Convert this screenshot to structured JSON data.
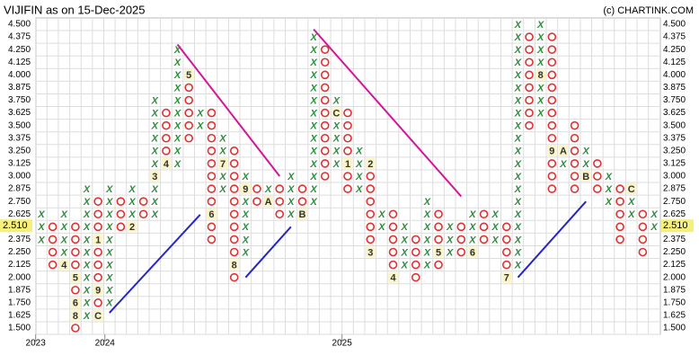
{
  "chart_data": {
    "type": "point-and-figure",
    "title": "VIJIFIN as on 15-Dec-2025",
    "credit": "(c) CHARTINK.COM",
    "x_color": "#2e8b3e",
    "o_color": "#e03030",
    "box_size": 0.125,
    "ylim": [
      1.5,
      4.5
    ],
    "yticks": [
      {
        "value": 1.5,
        "label": "1.500"
      },
      {
        "value": 1.625,
        "label": "1.625"
      },
      {
        "value": 1.75,
        "label": "1.750"
      },
      {
        "value": 1.875,
        "label": "1.875"
      },
      {
        "value": 2.0,
        "label": "2.000"
      },
      {
        "value": 2.125,
        "label": "2.125"
      },
      {
        "value": 2.25,
        "label": "2.250"
      },
      {
        "value": 2.375,
        "label": "2.375"
      },
      {
        "value": 2.5,
        "label": "2.500"
      },
      {
        "value": 2.625,
        "label": "2.625"
      },
      {
        "value": 2.75,
        "label": "2.750"
      },
      {
        "value": 2.875,
        "label": "2.875"
      },
      {
        "value": 3.0,
        "label": "3.000"
      },
      {
        "value": 3.125,
        "label": "3.125"
      },
      {
        "value": 3.25,
        "label": "3.250"
      },
      {
        "value": 3.375,
        "label": "3.375"
      },
      {
        "value": 3.5,
        "label": "3.500"
      },
      {
        "value": 3.625,
        "label": "3.625"
      },
      {
        "value": 3.75,
        "label": "3.750"
      },
      {
        "value": 3.875,
        "label": "3.875"
      },
      {
        "value": 4.0,
        "label": "4.000"
      },
      {
        "value": 4.125,
        "label": "4.125"
      },
      {
        "value": 4.25,
        "label": "4.250"
      },
      {
        "value": 4.375,
        "label": "4.375"
      },
      {
        "value": 4.5,
        "label": "4.500"
      }
    ],
    "last_price": {
      "value": 2.51,
      "label": "2.510"
    },
    "x_labels": [
      {
        "value": -0.5,
        "label": "2023"
      },
      {
        "value": 5.6,
        "label": "2024"
      },
      {
        "value": 26.5,
        "label": "2025"
      }
    ],
    "columns": [
      {
        "type": "X",
        "low": 2.375,
        "high": 2.625,
        "marks": []
      },
      {
        "type": "O",
        "low": 2.125,
        "high": 2.5,
        "marks": []
      },
      {
        "type": "X",
        "low": 2.125,
        "high": 2.625,
        "marks": [
          {
            "value": 2.125,
            "label": "4"
          }
        ]
      },
      {
        "type": "O",
        "low": 1.5,
        "high": 2.5,
        "marks": [
          {
            "value": 2.0,
            "label": "5"
          },
          {
            "value": 1.75,
            "label": "6"
          },
          {
            "value": 1.625,
            "label": "8"
          }
        ]
      },
      {
        "type": "X",
        "low": 1.625,
        "high": 2.875,
        "marks": []
      },
      {
        "type": "O",
        "low": 1.625,
        "high": 2.75,
        "marks": [
          {
            "value": 2.375,
            "label": "1"
          },
          {
            "value": 1.875,
            "label": "9"
          },
          {
            "value": 1.625,
            "label": "C"
          }
        ]
      },
      {
        "type": "X",
        "low": 1.75,
        "high": 2.875,
        "marks": []
      },
      {
        "type": "O",
        "low": 2.5,
        "high": 2.75,
        "marks": []
      },
      {
        "type": "X",
        "low": 2.5,
        "high": 2.875,
        "marks": [
          {
            "value": 2.5,
            "label": "2"
          }
        ]
      },
      {
        "type": "O",
        "low": 2.625,
        "high": 2.75,
        "marks": []
      },
      {
        "type": "X",
        "low": 2.625,
        "high": 3.75,
        "marks": [
          {
            "value": 3.0,
            "label": "3"
          }
        ]
      },
      {
        "type": "O",
        "low": 3.125,
        "high": 3.625,
        "marks": [
          {
            "value": 3.125,
            "label": "4"
          }
        ]
      },
      {
        "type": "X",
        "low": 3.125,
        "high": 4.25,
        "marks": []
      },
      {
        "type": "O",
        "low": 3.375,
        "high": 4.0,
        "marks": [
          {
            "value": 4.0,
            "label": "5"
          }
        ]
      },
      {
        "type": "X",
        "low": 3.5,
        "high": 3.625,
        "marks": []
      },
      {
        "type": "O",
        "low": 2.375,
        "high": 3.625,
        "marks": [
          {
            "value": 2.625,
            "label": "6"
          }
        ]
      },
      {
        "type": "X",
        "low": 2.875,
        "high": 3.375,
        "marks": [
          {
            "value": 3.125,
            "label": "7"
          }
        ]
      },
      {
        "type": "O",
        "low": 2.0,
        "high": 3.25,
        "marks": [
          {
            "value": 2.125,
            "label": "8"
          }
        ]
      },
      {
        "type": "X",
        "low": 2.25,
        "high": 3.0,
        "marks": [
          {
            "value": 2.875,
            "label": "9"
          }
        ]
      },
      {
        "type": "O",
        "low": 2.75,
        "high": 2.875,
        "marks": []
      },
      {
        "type": "X",
        "low": 2.75,
        "high": 2.875,
        "marks": [
          {
            "value": 2.75,
            "label": "A"
          }
        ]
      },
      {
        "type": "O",
        "low": 2.625,
        "high": 2.875,
        "marks": []
      },
      {
        "type": "X",
        "low": 2.625,
        "high": 3.0,
        "marks": []
      },
      {
        "type": "O",
        "low": 2.625,
        "high": 2.875,
        "marks": [
          {
            "value": 2.625,
            "label": "B"
          }
        ]
      },
      {
        "type": "X",
        "low": 2.75,
        "high": 4.375,
        "marks": []
      },
      {
        "type": "O",
        "low": 3.0,
        "high": 4.25,
        "marks": []
      },
      {
        "type": "X",
        "low": 3.125,
        "high": 3.75,
        "marks": [
          {
            "value": 3.625,
            "label": "C"
          }
        ]
      },
      {
        "type": "O",
        "low": 2.875,
        "high": 3.625,
        "marks": [
          {
            "value": 3.125,
            "label": "1"
          }
        ]
      },
      {
        "type": "X",
        "low": 2.875,
        "high": 3.25,
        "marks": []
      },
      {
        "type": "O",
        "low": 2.25,
        "high": 3.125,
        "marks": [
          {
            "value": 3.125,
            "label": "2"
          },
          {
            "value": 2.25,
            "label": "3"
          }
        ]
      },
      {
        "type": "X",
        "low": 2.5,
        "high": 2.625,
        "marks": []
      },
      {
        "type": "O",
        "low": 2.0,
        "high": 2.625,
        "marks": [
          {
            "value": 2.0,
            "label": "4"
          }
        ]
      },
      {
        "type": "X",
        "low": 2.125,
        "high": 2.5,
        "marks": []
      },
      {
        "type": "O",
        "low": 2.0,
        "high": 2.375,
        "marks": []
      },
      {
        "type": "X",
        "low": 2.125,
        "high": 2.75,
        "marks": []
      },
      {
        "type": "O",
        "low": 2.125,
        "high": 2.625,
        "marks": [
          {
            "value": 2.25,
            "label": "5"
          }
        ]
      },
      {
        "type": "X",
        "low": 2.25,
        "high": 2.5,
        "marks": []
      },
      {
        "type": "O",
        "low": 2.25,
        "high": 2.5,
        "marks": []
      },
      {
        "type": "X",
        "low": 2.25,
        "high": 2.625,
        "marks": [
          {
            "value": 2.25,
            "label": "6"
          }
        ]
      },
      {
        "type": "O",
        "low": 2.375,
        "high": 2.625,
        "marks": []
      },
      {
        "type": "X",
        "low": 2.375,
        "high": 2.625,
        "marks": []
      },
      {
        "type": "O",
        "low": 2.0,
        "high": 2.5,
        "marks": [
          {
            "value": 2.0,
            "label": "7"
          }
        ]
      },
      {
        "type": "X",
        "low": 2.125,
        "high": 4.5,
        "marks": []
      },
      {
        "type": "O",
        "low": 3.5,
        "high": 4.375,
        "marks": []
      },
      {
        "type": "X",
        "low": 3.625,
        "high": 4.5,
        "marks": [
          {
            "value": 4.0,
            "label": "8"
          }
        ]
      },
      {
        "type": "O",
        "low": 2.875,
        "high": 4.375,
        "marks": [
          {
            "value": 3.25,
            "label": "9"
          }
        ]
      },
      {
        "type": "X",
        "low": 3.125,
        "high": 3.25,
        "marks": [
          {
            "value": 3.25,
            "label": "A"
          }
        ]
      },
      {
        "type": "O",
        "low": 2.875,
        "high": 3.5,
        "marks": []
      },
      {
        "type": "X",
        "low": 3.0,
        "high": 3.25,
        "marks": [
          {
            "value": 3.0,
            "label": "B"
          }
        ]
      },
      {
        "type": "O",
        "low": 2.875,
        "high": 3.125,
        "marks": []
      },
      {
        "type": "X",
        "low": 2.75,
        "high": 3.0,
        "marks": []
      },
      {
        "type": "O",
        "low": 2.375,
        "high": 2.875,
        "marks": []
      },
      {
        "type": "X",
        "low": 2.625,
        "high": 2.875,
        "marks": [
          {
            "value": 2.875,
            "label": "C"
          }
        ]
      },
      {
        "type": "O",
        "low": 2.25,
        "high": 2.625,
        "marks": []
      },
      {
        "type": "X",
        "low": 2.5,
        "high": 2.625,
        "marks": []
      }
    ],
    "trendlines": [
      {
        "color": "#d0179a",
        "x": [
          12,
          21
        ],
        "y": [
          4.3,
          3.0
        ]
      },
      {
        "color": "#d0179a",
        "x": [
          24,
          37
        ],
        "y": [
          4.45,
          2.8
        ]
      },
      {
        "color": "#2525c8",
        "x": [
          6,
          14
        ],
        "y": [
          1.65,
          2.62
        ]
      },
      {
        "color": "#2525c8",
        "x": [
          18,
          22
        ],
        "y": [
          2.0,
          2.5
        ]
      },
      {
        "color": "#2525c8",
        "x": [
          42,
          48
        ],
        "y": [
          2.0,
          2.75
        ]
      }
    ]
  }
}
